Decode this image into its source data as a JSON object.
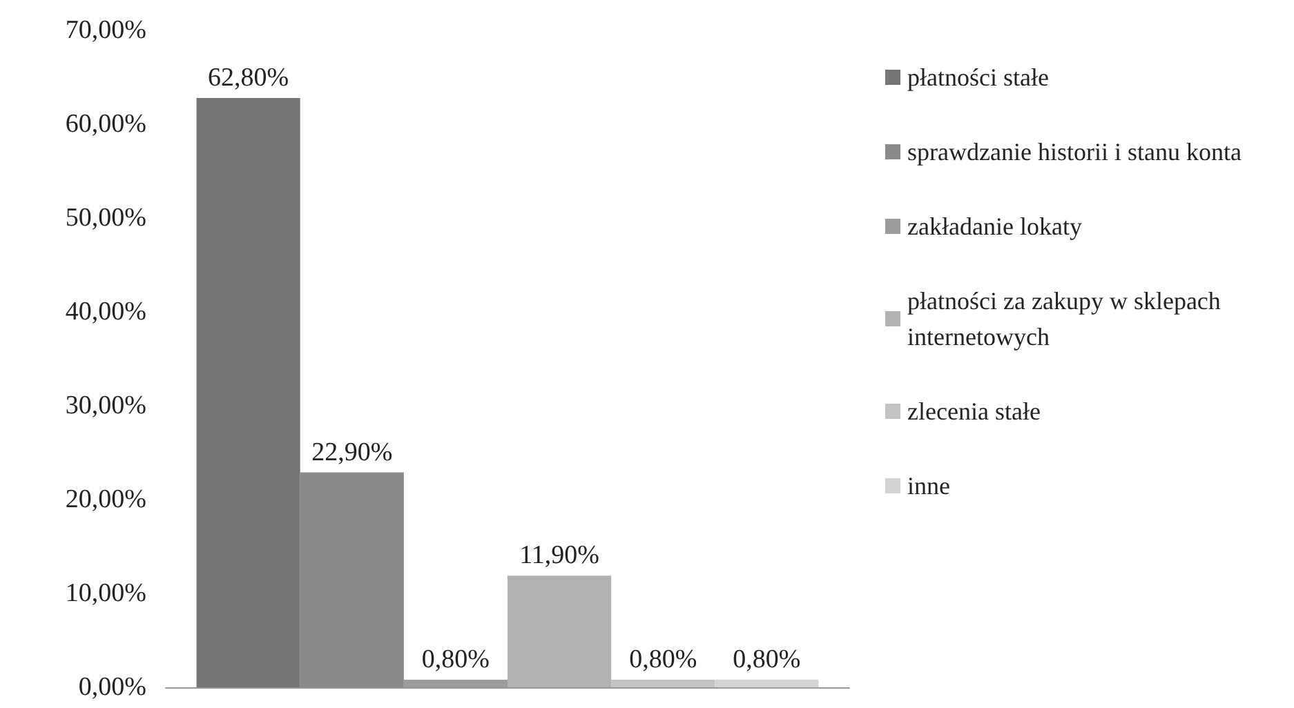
{
  "chart_data": {
    "type": "bar",
    "categories": [
      null
    ],
    "series": [
      {
        "name": "płatności stałe",
        "color": "#757575",
        "values": [
          62.8
        ],
        "value_labels": [
          "62,80%"
        ]
      },
      {
        "name": "sprawdzanie historii i stanu konta",
        "color": "#8a8a8a",
        "values": [
          22.9
        ],
        "value_labels": [
          "22,90%"
        ]
      },
      {
        "name": "zakładanie lokaty",
        "color": "#9c9c9c",
        "values": [
          0.8
        ],
        "value_labels": [
          "0,80%"
        ]
      },
      {
        "name": "płatności za zakupy w sklepach internetowych",
        "color": "#b1b1b1",
        "values": [
          11.9
        ],
        "value_labels": [
          "11,90%"
        ]
      },
      {
        "name": "zlecenia stałe",
        "color": "#c3c3c3",
        "values": [
          0.8
        ],
        "value_labels": [
          "0,80%"
        ]
      },
      {
        "name": "inne",
        "color": "#d4d4d4",
        "values": [
          0.8
        ],
        "value_labels": [
          "0,80%"
        ]
      }
    ],
    "ylim": [
      0,
      70
    ],
    "yticks": [
      {
        "value": 0,
        "label": "0,00%"
      },
      {
        "value": 10,
        "label": "10,00%"
      },
      {
        "value": 20,
        "label": "20,00%"
      },
      {
        "value": 30,
        "label": "30,00%"
      },
      {
        "value": 40,
        "label": "40,00%"
      },
      {
        "value": 50,
        "label": "50,00%"
      },
      {
        "value": 60,
        "label": "60,00%"
      },
      {
        "value": 70,
        "label": "70,00%"
      }
    ],
    "grid": false,
    "legend": "right"
  }
}
